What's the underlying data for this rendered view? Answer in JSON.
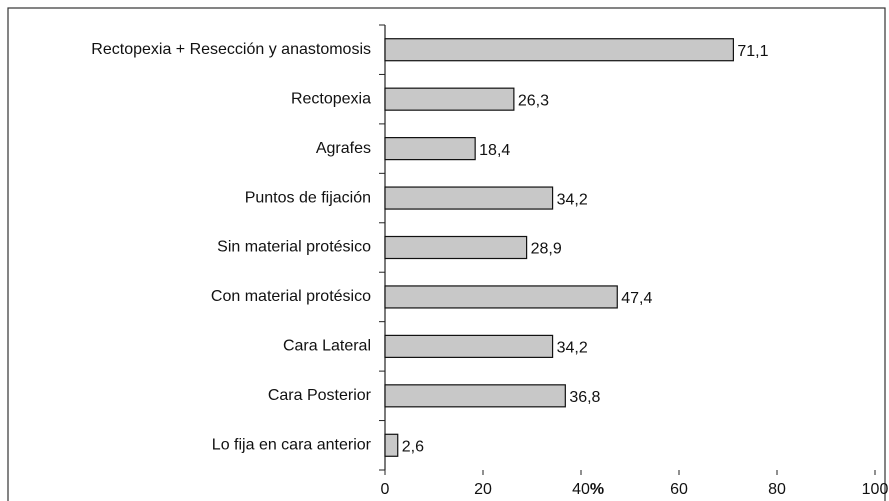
{
  "chart_data": {
    "type": "bar",
    "orientation": "horizontal",
    "categories": [
      "Rectopexia + Resección y anastomosis",
      "Rectopexia",
      "Agrafes",
      "Puntos de fijación",
      "Sin material protésico",
      "Con material protésico",
      "Cara Lateral",
      "Cara Posterior",
      "Lo fija en cara anterior"
    ],
    "values": [
      71.1,
      26.3,
      18.4,
      34.2,
      28.9,
      47.4,
      34.2,
      36.8,
      2.6
    ],
    "value_labels": [
      "71,1",
      "26,3",
      "18,4",
      "34,2",
      "28,9",
      "47,4",
      "34,2",
      "36,8",
      "2,6"
    ],
    "color": "#c8c8c8",
    "xlabel": "%",
    "xlim": [
      0,
      100
    ],
    "xticks": [
      0,
      20,
      40,
      60,
      80,
      100
    ],
    "grid": false
  }
}
